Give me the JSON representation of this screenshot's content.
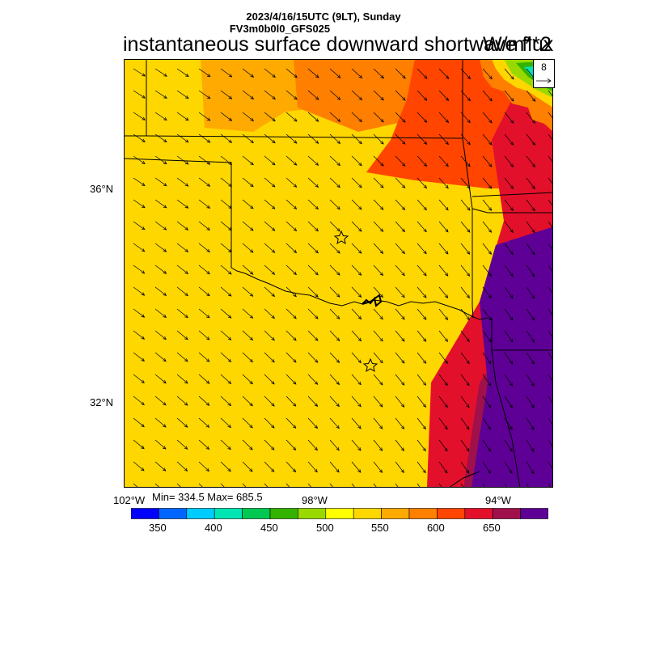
{
  "header": {
    "date_line": "2023/4/16/15UTC (9LT), Sunday",
    "model_line": "FV3m0b0l0_GFS025",
    "title": "instantaneous surface downward shortwave flux",
    "units": "W/m**2"
  },
  "stats": {
    "text": "Min= 334.5 Max= 685.5",
    "min": 334.5,
    "max": 685.5
  },
  "reference_vector": {
    "label": "8",
    "icon": "arrow-right-icon"
  },
  "lat_labels": [
    "36°N",
    "32°N"
  ],
  "lon_labels": [
    "102°W",
    "98°W",
    "94°W"
  ],
  "map": {
    "field_bands": [
      {
        "value_range": [
          525,
          550
        ],
        "color": "#ffd700"
      },
      {
        "value_range": [
          550,
          575
        ],
        "color": "#ffaa00"
      },
      {
        "value_range": [
          575,
          600
        ],
        "color": "#ff7f00"
      },
      {
        "value_range": [
          600,
          625
        ],
        "color": "#ff4500"
      },
      {
        "value_range": [
          625,
          650
        ],
        "color": "#e3102b"
      },
      {
        "value_range": [
          650,
          675
        ],
        "color": "#a0104a"
      },
      {
        "value_range": [
          675,
          700
        ],
        "color": "#5e0096"
      }
    ],
    "markers": [
      "star-marker",
      "star-marker"
    ],
    "overlay": "wind vectors",
    "boundaries": "state borders"
  },
  "colorbar": {
    "colors": [
      "#0000ff",
      "#0066ff",
      "#00ccff",
      "#00e5b3",
      "#00c850",
      "#33b300",
      "#99d900",
      "#ffff00",
      "#ffd700",
      "#ffaa00",
      "#ff7f00",
      "#ff4500",
      "#e3102b",
      "#a0104a",
      "#5e0096"
    ],
    "labels": [
      "350",
      "400",
      "450",
      "500",
      "550",
      "600",
      "650"
    ]
  }
}
